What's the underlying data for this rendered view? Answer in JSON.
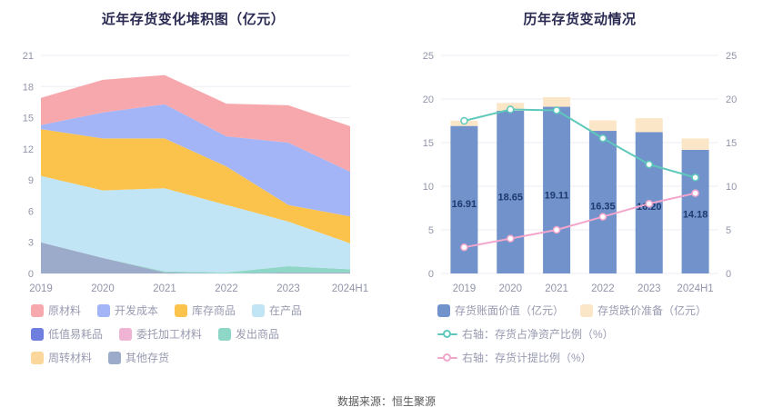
{
  "page": {
    "background": "#ffffff",
    "footer": "数据来源：恒生聚源"
  },
  "left_chart": {
    "title": "近年存货变化堆积图（亿元）"
  },
  "right_chart": {
    "title": "历年存货变动情况"
  },
  "chart_data": [
    {
      "type": "area",
      "title": "近年存货变化堆积图（亿元）",
      "categories": [
        "2019",
        "2020",
        "2021",
        "2022",
        "2023",
        "2024H1"
      ],
      "ylim": [
        0,
        21
      ],
      "yticks": [
        0,
        3,
        6,
        9,
        12,
        15,
        18,
        21
      ],
      "grid": true,
      "legend_position": "bottom",
      "series": [
        {
          "name": "原材料",
          "color": "#f7a8ad",
          "values": [
            2.61,
            3.15,
            2.81,
            3.15,
            3.6,
            4.38
          ]
        },
        {
          "name": "开发成本",
          "color": "#a3b4f7",
          "values": [
            0.4,
            2.5,
            3.3,
            2.9,
            6.0,
            4.3
          ]
        },
        {
          "name": "库存商品",
          "color": "#fbc34c",
          "values": [
            4.5,
            5.0,
            4.8,
            3.7,
            1.6,
            2.6
          ]
        },
        {
          "name": "在产品",
          "color": "#c2e5f6",
          "values": [
            6.4,
            6.5,
            8.0,
            6.5,
            4.3,
            2.5
          ]
        },
        {
          "name": "低值易耗品",
          "color": "#6f7fe0",
          "values": [
            0,
            0,
            0,
            0,
            0,
            0
          ]
        },
        {
          "name": "委托加工材料",
          "color": "#efb3d4",
          "values": [
            0,
            0,
            0,
            0,
            0,
            0
          ]
        },
        {
          "name": "发出商品",
          "color": "#8ed7c6",
          "values": [
            0,
            0,
            0.1,
            0.1,
            0.6,
            0.3
          ]
        },
        {
          "name": "周转材料",
          "color": "#fbd79c",
          "values": [
            0,
            0,
            0,
            0,
            0,
            0
          ]
        },
        {
          "name": "其他存货",
          "color": "#9cabc9",
          "values": [
            3.0,
            1.5,
            0.1,
            0,
            0.1,
            0.1
          ]
        }
      ],
      "stack_order": [
        "其他存货",
        "发出商品",
        "在产品",
        "库存商品",
        "低值易耗品",
        "委托加工材料",
        "周转材料",
        "开发成本",
        "原材料"
      ]
    },
    {
      "type": "bar",
      "title": "历年存货变动情况",
      "categories": [
        "2019",
        "2020",
        "2021",
        "2022",
        "2023",
        "2024H1"
      ],
      "left_ylim": [
        0,
        25
      ],
      "right_ylim": [
        0,
        25
      ],
      "yticks": [
        0,
        5,
        10,
        15,
        20,
        25
      ],
      "grid": true,
      "bar_label_color": "#1e3a6e",
      "bar_series": [
        {
          "name": "存货账面价值（亿元）",
          "color": "#7292cc",
          "values": [
            16.91,
            18.65,
            19.11,
            16.35,
            16.2,
            14.18
          ],
          "labels": [
            "16.91",
            "18.65",
            "19.11",
            "16.35",
            "16.20",
            "14.18"
          ]
        },
        {
          "name": "存货跌价准备（亿元）",
          "color": "#fce6c8",
          "values": [
            0.6,
            0.9,
            1.1,
            1.2,
            1.6,
            1.3
          ]
        }
      ],
      "line_series": [
        {
          "name": "右轴：存货占净资产比例（%）",
          "color": "#5ec9bb",
          "axis": "right",
          "values": [
            17.5,
            18.8,
            18.7,
            15.5,
            12.5,
            11.0
          ]
        },
        {
          "name": "右轴：存货计提比例（%）",
          "color": "#f3a6cb",
          "axis": "right",
          "values": [
            3.0,
            4.0,
            5.0,
            6.5,
            8.0,
            9.2
          ]
        }
      ]
    }
  ],
  "left_legend_rows": [
    [
      {
        "label": "原材料",
        "marker": "square",
        "color": "#f7a8ad"
      },
      {
        "label": "开发成本",
        "marker": "square",
        "color": "#a3b4f7"
      },
      {
        "label": "库存商品",
        "marker": "square",
        "color": "#fbc34c"
      },
      {
        "label": "在产品",
        "marker": "square",
        "color": "#c2e5f6"
      }
    ],
    [
      {
        "label": "低值易耗品",
        "marker": "square",
        "color": "#6f7fe0"
      },
      {
        "label": "委托加工材料",
        "marker": "square",
        "color": "#efb3d4"
      },
      {
        "label": "发出商品",
        "marker": "square",
        "color": "#8ed7c6"
      }
    ],
    [
      {
        "label": "周转材料",
        "marker": "square",
        "color": "#fbd79c"
      },
      {
        "label": "其他存货",
        "marker": "square",
        "color": "#9cabc9"
      }
    ]
  ],
  "right_legend_rows": [
    [
      {
        "label": "存货账面价值（亿元）",
        "marker": "square",
        "color": "#7292cc"
      },
      {
        "label": "存货跌价准备（亿元）",
        "marker": "square",
        "color": "#fce6c8"
      }
    ],
    [
      {
        "label": "右轴：存货占净资产比例（%）",
        "marker": "line-circle",
        "color": "#5ec9bb"
      }
    ],
    [
      {
        "label": "右轴：存货计提比例（%）",
        "marker": "line-circle",
        "color": "#f3a6cb"
      }
    ]
  ]
}
